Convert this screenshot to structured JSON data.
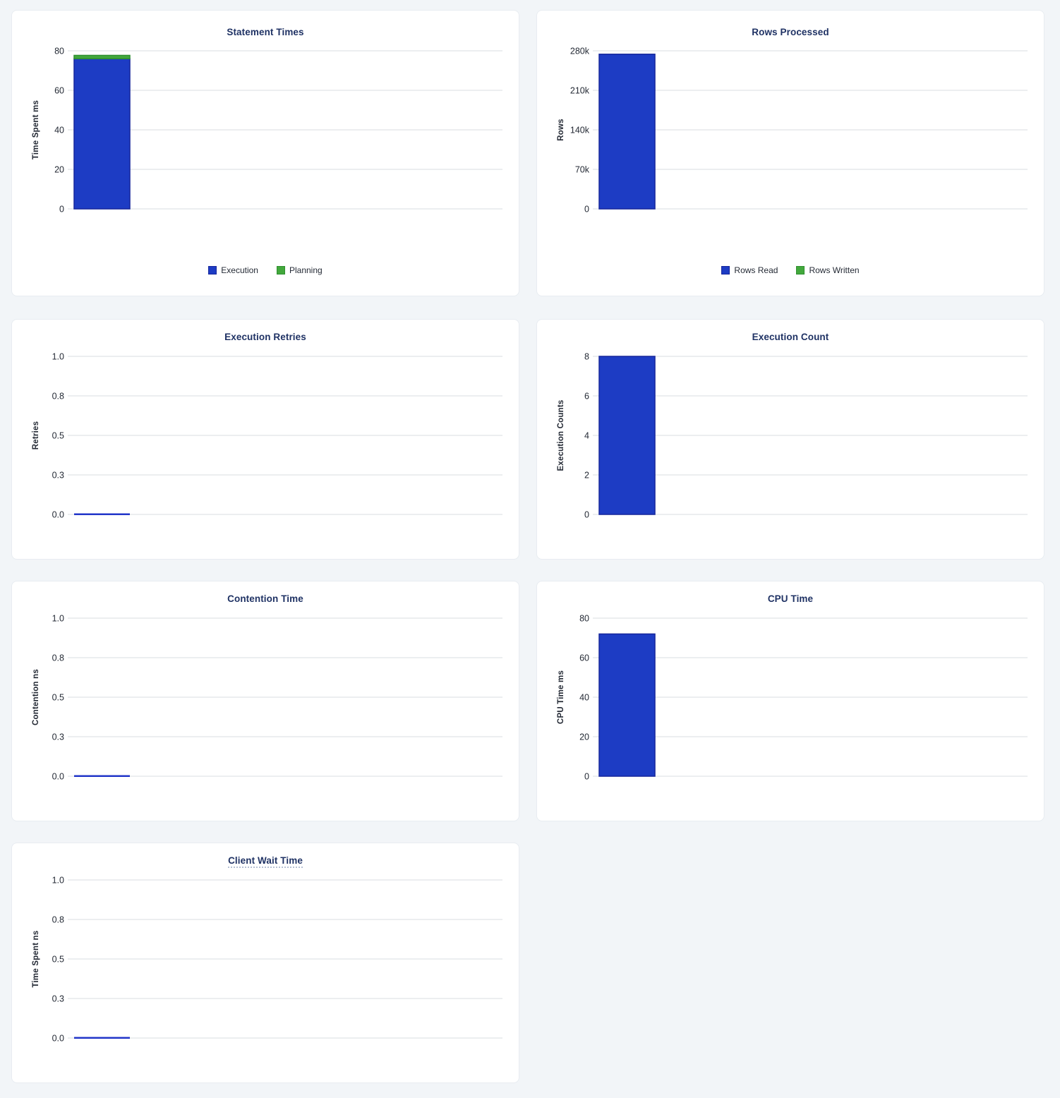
{
  "page": {
    "background": "#f2f5f8",
    "panel_background": "#ffffff"
  },
  "colors": {
    "bar_blue": "#1d3cc4",
    "bar_blue_border": "#16269c",
    "bar_green": "#42a83c",
    "bar_green_border": "#2f8f2f",
    "zero_line": "#2236c9",
    "gridline": "#e6e8ec",
    "tick_text": "#242a35",
    "title_text": "#1f3264"
  },
  "chart_data": [
    {
      "id": "statement-times",
      "type": "bar",
      "title": "Statement Times",
      "ylabel": "Time Spent ms",
      "ymax": 80,
      "ylim": [
        0,
        80
      ],
      "ytick_labels": [
        "0",
        "20",
        "40",
        "60",
        "80"
      ],
      "grid": true,
      "stacked": true,
      "series": [
        {
          "name": "Execution",
          "value": 76,
          "color": "blue"
        },
        {
          "name": "Planning",
          "value": 1.7,
          "color": "green"
        }
      ],
      "legend": [
        {
          "label": "Execution",
          "color": "blue"
        },
        {
          "label": "Planning",
          "color": "green"
        }
      ],
      "legend_position": "bottom"
    },
    {
      "id": "rows-processed",
      "type": "bar",
      "title": "Rows Processed",
      "ylabel": "Rows",
      "ymax": 280000,
      "ylim": [
        0,
        280000
      ],
      "ytick_labels": [
        "0",
        "70k",
        "140k",
        "210k",
        "280k"
      ],
      "grid": true,
      "stacked": true,
      "series": [
        {
          "name": "Rows Read",
          "value": 274000,
          "color": "blue"
        },
        {
          "name": "Rows Written",
          "value": 0,
          "color": "green"
        }
      ],
      "legend": [
        {
          "label": "Rows Read",
          "color": "blue"
        },
        {
          "label": "Rows Written",
          "color": "green"
        }
      ],
      "legend_position": "bottom"
    },
    {
      "id": "execution-retries",
      "type": "bar",
      "title": "Execution Retries",
      "ylabel": "Retries",
      "ymax": 1,
      "ylim": [
        0,
        1
      ],
      "ytick_labels": [
        "0.0",
        "0.3",
        "0.5",
        "0.8",
        "1.0"
      ],
      "grid": true,
      "stacked": false,
      "series": [
        {
          "name": "Retries",
          "value": 0,
          "color": "blue"
        }
      ],
      "legend": []
    },
    {
      "id": "execution-count",
      "type": "bar",
      "title": "Execution Count",
      "ylabel": "Execution Counts",
      "ymax": 8,
      "ylim": [
        0,
        8
      ],
      "ytick_labels": [
        "0",
        "2",
        "4",
        "6",
        "8"
      ],
      "grid": true,
      "stacked": false,
      "series": [
        {
          "name": "Execution Count",
          "value": 8,
          "color": "blue"
        }
      ],
      "legend": []
    },
    {
      "id": "contention-time",
      "type": "bar",
      "title": "Contention Time",
      "ylabel": "Contention ns",
      "ymax": 1,
      "ylim": [
        0,
        1
      ],
      "ytick_labels": [
        "0.0",
        "0.3",
        "0.5",
        "0.8",
        "1.0"
      ],
      "grid": true,
      "stacked": false,
      "series": [
        {
          "name": "Contention",
          "value": 0,
          "color": "blue"
        }
      ],
      "legend": []
    },
    {
      "id": "cpu-time",
      "type": "bar",
      "title": "CPU Time",
      "ylabel": "CPU Time ms",
      "ymax": 80,
      "ylim": [
        0,
        80
      ],
      "ytick_labels": [
        "0",
        "20",
        "40",
        "60",
        "80"
      ],
      "grid": true,
      "stacked": false,
      "series": [
        {
          "name": "CPU Time",
          "value": 72,
          "color": "blue"
        }
      ],
      "legend": []
    },
    {
      "id": "client-wait-time",
      "type": "bar",
      "title": "Client Wait Time",
      "title_has_tooltip_underline": true,
      "ylabel": "Time Spent ns",
      "ymax": 1,
      "ylim": [
        0,
        1
      ],
      "ytick_labels": [
        "0.0",
        "0.3",
        "0.5",
        "0.8",
        "1.0"
      ],
      "grid": true,
      "stacked": false,
      "series": [
        {
          "name": "Client Wait",
          "value": 0,
          "color": "blue"
        }
      ],
      "legend": []
    }
  ]
}
